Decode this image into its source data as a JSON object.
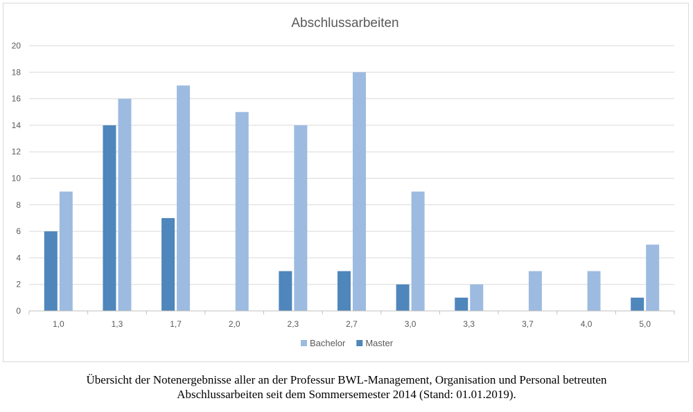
{
  "chart_data": {
    "type": "bar",
    "title": "Abschlussarbeiten",
    "xlabel": "",
    "ylabel": "",
    "categories": [
      "1,0",
      "1,3",
      "1,7",
      "2,0",
      "2,3",
      "2,7",
      "3,0",
      "3,3",
      "3,7",
      "4,0",
      "5,0"
    ],
    "series": [
      {
        "name": "Master",
        "color": "#4f86bb",
        "values": [
          6,
          14,
          7,
          0,
          3,
          3,
          2,
          1,
          0,
          0,
          1
        ]
      },
      {
        "name": "Bachelor",
        "color": "#9dbbe0",
        "values": [
          9,
          16,
          17,
          15,
          14,
          18,
          9,
          2,
          3,
          3,
          5
        ]
      }
    ],
    "ylim": [
      0,
      20
    ],
    "yticks": [
      0,
      2,
      4,
      6,
      8,
      10,
      12,
      14,
      16,
      18,
      20
    ],
    "grid": true,
    "legend_position": "bottom",
    "legend_order": [
      "Bachelor",
      "Master"
    ]
  },
  "caption": {
    "line1": "Übersicht der Notenergebnisse aller an der Professur BWL-Management, Organisation und Personal betreuten",
    "line2": "Abschlussarbeiten seit dem Sommersemester 2014 (Stand: 01.01.2019)."
  }
}
